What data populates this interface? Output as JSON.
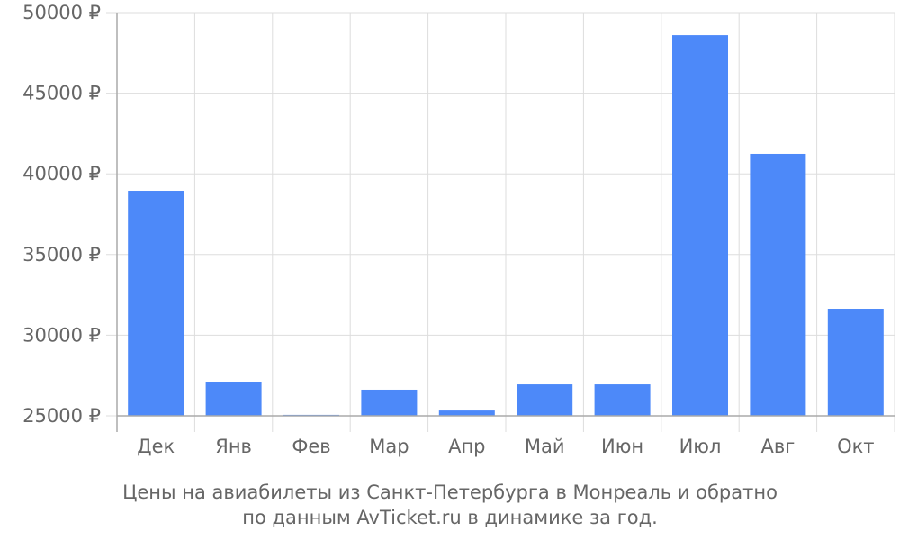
{
  "chart_data": {
    "type": "bar",
    "title": "Цены на авиабилеты из Санкт-Петербурга в Монреаль и обратно",
    "subtitle": "по данным AvTicket.ru в динамике за год.",
    "categories": [
      "Дек",
      "Янв",
      "Фев",
      "Мар",
      "Апр",
      "Май",
      "Июн",
      "Июл",
      "Авг",
      "Окт"
    ],
    "values": [
      38950,
      27120,
      25060,
      26620,
      25330,
      26950,
      26950,
      48600,
      41240,
      31640
    ],
    "color": "#4d89f9",
    "ylim": [
      25000,
      50000
    ],
    "yticks": [
      {
        "value": 25000,
        "label": "25000 ₽"
      },
      {
        "value": 30000,
        "label": "30000 ₽"
      },
      {
        "value": 35000,
        "label": "35000 ₽"
      },
      {
        "value": 40000,
        "label": "40000 ₽"
      },
      {
        "value": 45000,
        "label": "45000 ₽"
      },
      {
        "value": 50000,
        "label": "50000 ₽"
      }
    ],
    "grid": true
  }
}
